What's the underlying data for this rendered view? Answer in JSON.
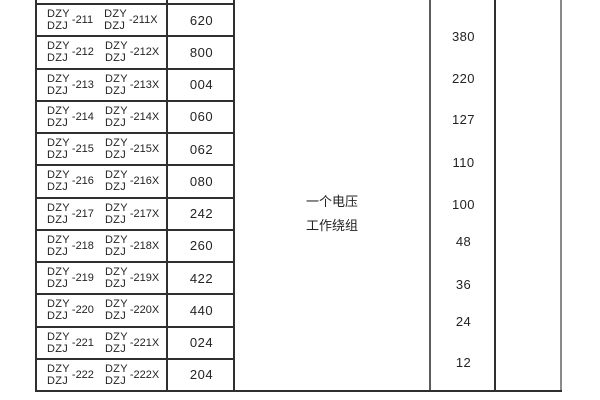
{
  "table": {
    "rows": [
      {
        "m1_top": "DZY",
        "m1_bot": "DZJ",
        "m1_num": "-211",
        "m2_top": "DZY",
        "m2_bot": "DZJ",
        "m2_num": "-211X",
        "code": "620"
      },
      {
        "m1_top": "DZY",
        "m1_bot": "DZJ",
        "m1_num": "-212",
        "m2_top": "DZY",
        "m2_bot": "DZJ",
        "m2_num": "-212X",
        "code": "800"
      },
      {
        "m1_top": "DZY",
        "m1_bot": "DZJ",
        "m1_num": "-213",
        "m2_top": "DZY",
        "m2_bot": "DZJ",
        "m2_num": "-213X",
        "code": "004"
      },
      {
        "m1_top": "DZY",
        "m1_bot": "DZJ",
        "m1_num": "-214",
        "m2_top": "DZY",
        "m2_bot": "DZJ",
        "m2_num": "-214X",
        "code": "060"
      },
      {
        "m1_top": "DZY",
        "m1_bot": "DZJ",
        "m1_num": "-215",
        "m2_top": "DZY",
        "m2_bot": "DZJ",
        "m2_num": "-215X",
        "code": "062"
      },
      {
        "m1_top": "DZY",
        "m1_bot": "DZJ",
        "m1_num": "-216",
        "m2_top": "DZY",
        "m2_bot": "DZJ",
        "m2_num": "-216X",
        "code": "080"
      },
      {
        "m1_top": "DZY",
        "m1_bot": "DZJ",
        "m1_num": "-217",
        "m2_top": "DZY",
        "m2_bot": "DZJ",
        "m2_num": "-217X",
        "code": "242"
      },
      {
        "m1_top": "DZY",
        "m1_bot": "DZJ",
        "m1_num": "-218",
        "m2_top": "DZY",
        "m2_bot": "DZJ",
        "m2_num": "-218X",
        "code": "260"
      },
      {
        "m1_top": "DZY",
        "m1_bot": "DZJ",
        "m1_num": "-219",
        "m2_top": "DZY",
        "m2_bot": "DZJ",
        "m2_num": "-219X",
        "code": "422"
      },
      {
        "m1_top": "DZY",
        "m1_bot": "DZJ",
        "m1_num": "-220",
        "m2_top": "DZY",
        "m2_bot": "DZJ",
        "m2_num": "-220X",
        "code": "440"
      },
      {
        "m1_top": "DZY",
        "m1_bot": "DZJ",
        "m1_num": "-221",
        "m2_top": "DZY",
        "m2_bot": "DZJ",
        "m2_num": "-221X",
        "code": "024"
      },
      {
        "m1_top": "DZY",
        "m1_bot": "DZJ",
        "m1_num": "-222",
        "m2_top": "DZY",
        "m2_bot": "DZJ",
        "m2_num": "-222X",
        "code": "204"
      }
    ],
    "winding_note": {
      "line1": "一个电压",
      "line2": "工作绕组"
    },
    "voltages": [
      "380",
      "220",
      "127",
      "110",
      "100",
      "48",
      "36",
      "24",
      "12"
    ],
    "colors": {
      "line_dark": "#2f2f2f",
      "line_mid": "#5c5c5c",
      "line_light": "#8a8a8a",
      "text": "#232323"
    }
  }
}
